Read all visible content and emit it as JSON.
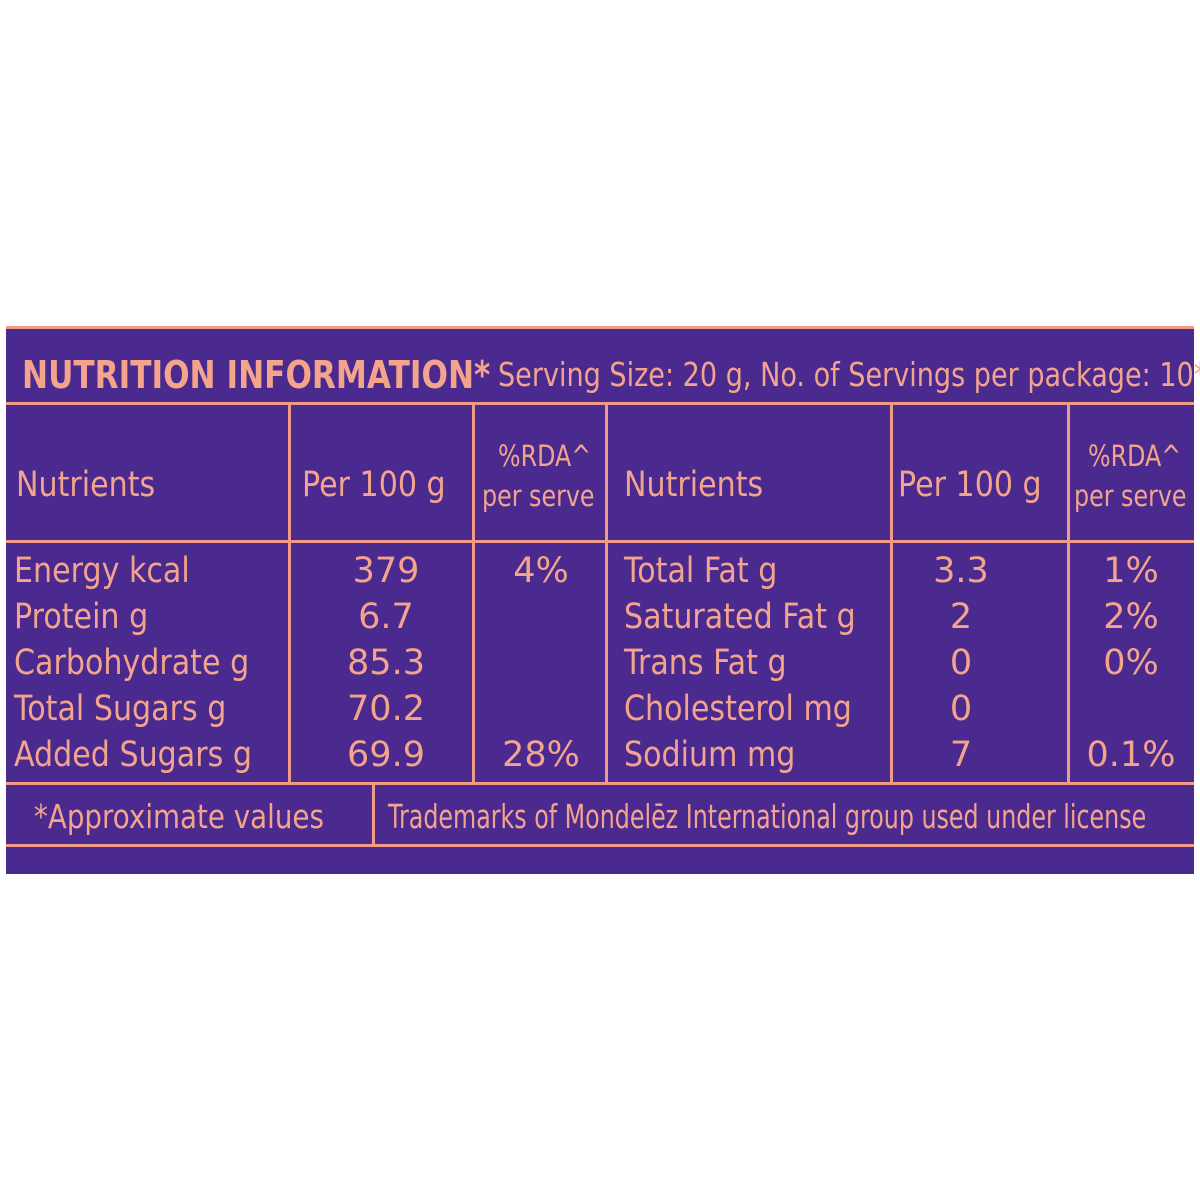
{
  "title": "NUTRITION INFORMATION*",
  "serving_info": "Serving Size: 20 g, No. of Servings per package: 10*",
  "headers": {
    "nutrients": "Nutrients",
    "per_100g": "Per 100 g",
    "rda_line1": "%RDA^",
    "rda_line2": "per serve"
  },
  "left_rows": [
    {
      "nutrient": "Energy kcal",
      "per_100g": "379",
      "rda": "4%"
    },
    {
      "nutrient": "Protein g",
      "per_100g": "6.7",
      "rda": ""
    },
    {
      "nutrient": "Carbohydrate g",
      "per_100g": "85.3",
      "rda": ""
    },
    {
      "nutrient": "Total Sugars g",
      "per_100g": "70.2",
      "rda": ""
    },
    {
      "nutrient": "Added Sugars g",
      "per_100g": "69.9",
      "rda": "28%"
    }
  ],
  "right_rows": [
    {
      "nutrient": "Total Fat g",
      "per_100g": "3.3",
      "rda": "1%"
    },
    {
      "nutrient": "Saturated Fat g",
      "per_100g": "2",
      "rda": "2%"
    },
    {
      "nutrient": "Trans Fat g",
      "per_100g": "0",
      "rda": "0%"
    },
    {
      "nutrient": "Cholesterol mg",
      "per_100g": "0",
      "rda": ""
    },
    {
      "nutrient": "Sodium mg",
      "per_100g": "7",
      "rda": "0.1%"
    }
  ],
  "footer": {
    "note": "*Approximate values",
    "trademark": "Trademarks of Mondelēz International group used under license"
  },
  "colors": {
    "background": "#4a2a8e",
    "text": "#f4a48c",
    "rules": "#ef9b86"
  }
}
